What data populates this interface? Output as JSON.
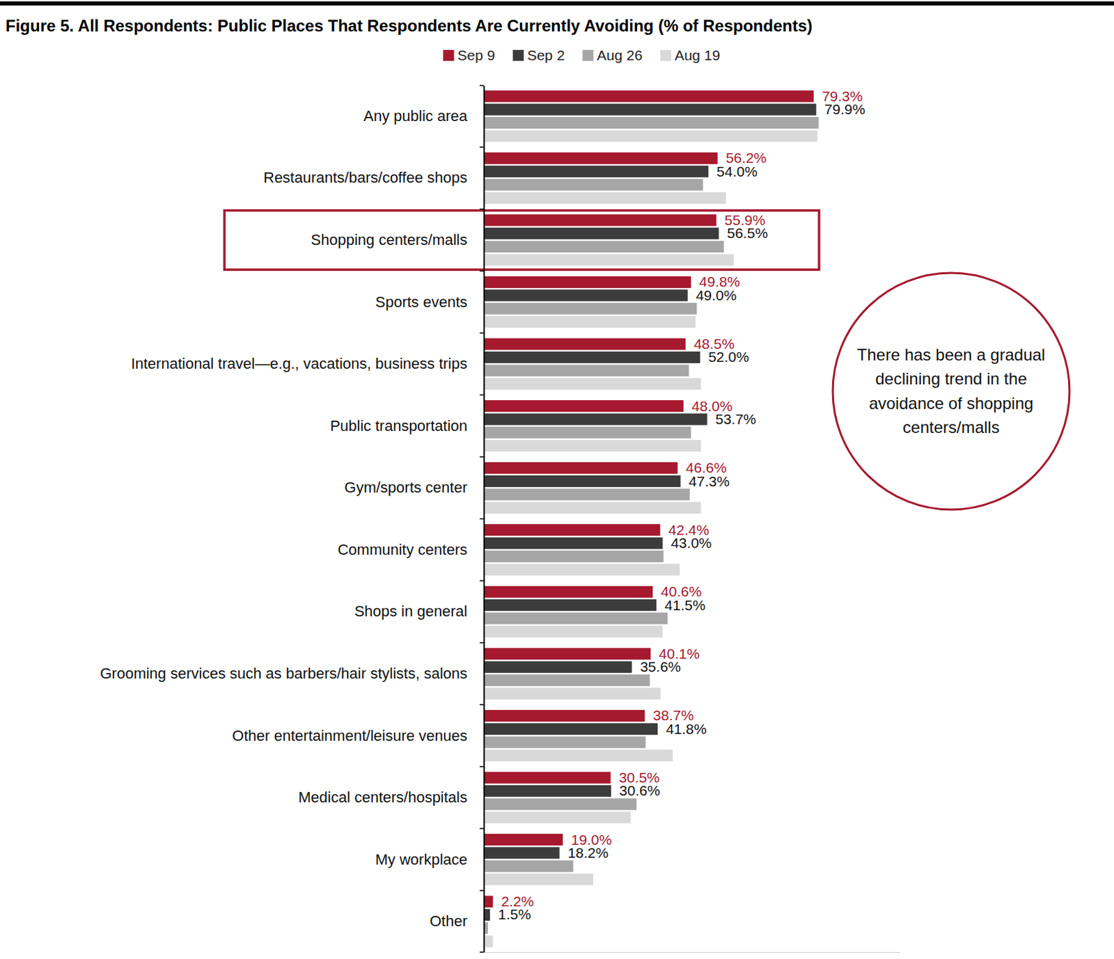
{
  "chart_data": {
    "type": "bar",
    "orientation": "horizontal",
    "title": "Figure 5. All Respondents: Public Places That Respondents Are Currently Avoiding (% of Respondents)",
    "categories": [
      "Any public area",
      "Restaurants/bars/coffee shops",
      "Shopping centers/malls",
      "Sports events",
      "International travel—e.g., vacations, business trips",
      "Public transportation",
      "Gym/sports center",
      "Community centers",
      "Shops in general",
      "Grooming services such as barbers/hair stylists, salons",
      "Other entertainment/leisure venues",
      "Medical centers/hospitals",
      "My workplace",
      "Other"
    ],
    "series": [
      {
        "name": "Sep 9",
        "color": "#a6192e",
        "data_labels": true,
        "values": [
          79.3,
          56.2,
          55.9,
          49.8,
          48.5,
          48.0,
          46.6,
          42.4,
          40.6,
          40.1,
          38.7,
          30.5,
          19.0,
          2.2
        ],
        "value_labels": [
          "79.3%",
          "56.2%",
          "55.9%",
          "49.8%",
          "48.5%",
          "48.0%",
          "46.6%",
          "42.4%",
          "40.6%",
          "40.1%",
          "38.7%",
          "30.5%",
          "19.0%",
          "2.2%"
        ]
      },
      {
        "name": "Sep 2",
        "color": "#3c3c3c",
        "data_labels": true,
        "values": [
          79.9,
          54.0,
          56.5,
          49.0,
          52.0,
          53.7,
          47.3,
          43.0,
          41.5,
          35.6,
          41.8,
          30.6,
          18.2,
          1.5
        ],
        "value_labels": [
          "79.9%",
          "54.0%",
          "56.5%",
          "49.0%",
          "52.0%",
          "53.7%",
          "47.3%",
          "43.0%",
          "41.5%",
          "35.6%",
          "41.8%",
          "30.6%",
          "18.2%",
          "1.5%"
        ]
      },
      {
        "name": "Aug 26",
        "color": "#a6a6a6",
        "data_labels": false,
        "values": [
          80.5,
          52.7,
          57.7,
          51.2,
          49.3,
          49.8,
          49.5,
          43.2,
          44.2,
          39.9,
          38.9,
          36.7,
          21.5,
          1.0
        ]
      },
      {
        "name": "Aug 19",
        "color": "#d9d9d9",
        "data_labels": false,
        "values": [
          80.2,
          58.2,
          60.1,
          50.9,
          52.2,
          52.2,
          52.2,
          47.1,
          43.0,
          42.5,
          45.4,
          35.3,
          26.3,
          2.2
        ]
      }
    ],
    "xlim": [
      0,
      100
    ],
    "xticks": [],
    "tick_labels": false,
    "grid": false,
    "legend": "top",
    "annotation": {
      "text": "There has been a gradual declining trend in the avoidance of shopping centers/malls",
      "highlight": "Shopping centers/malls"
    }
  }
}
